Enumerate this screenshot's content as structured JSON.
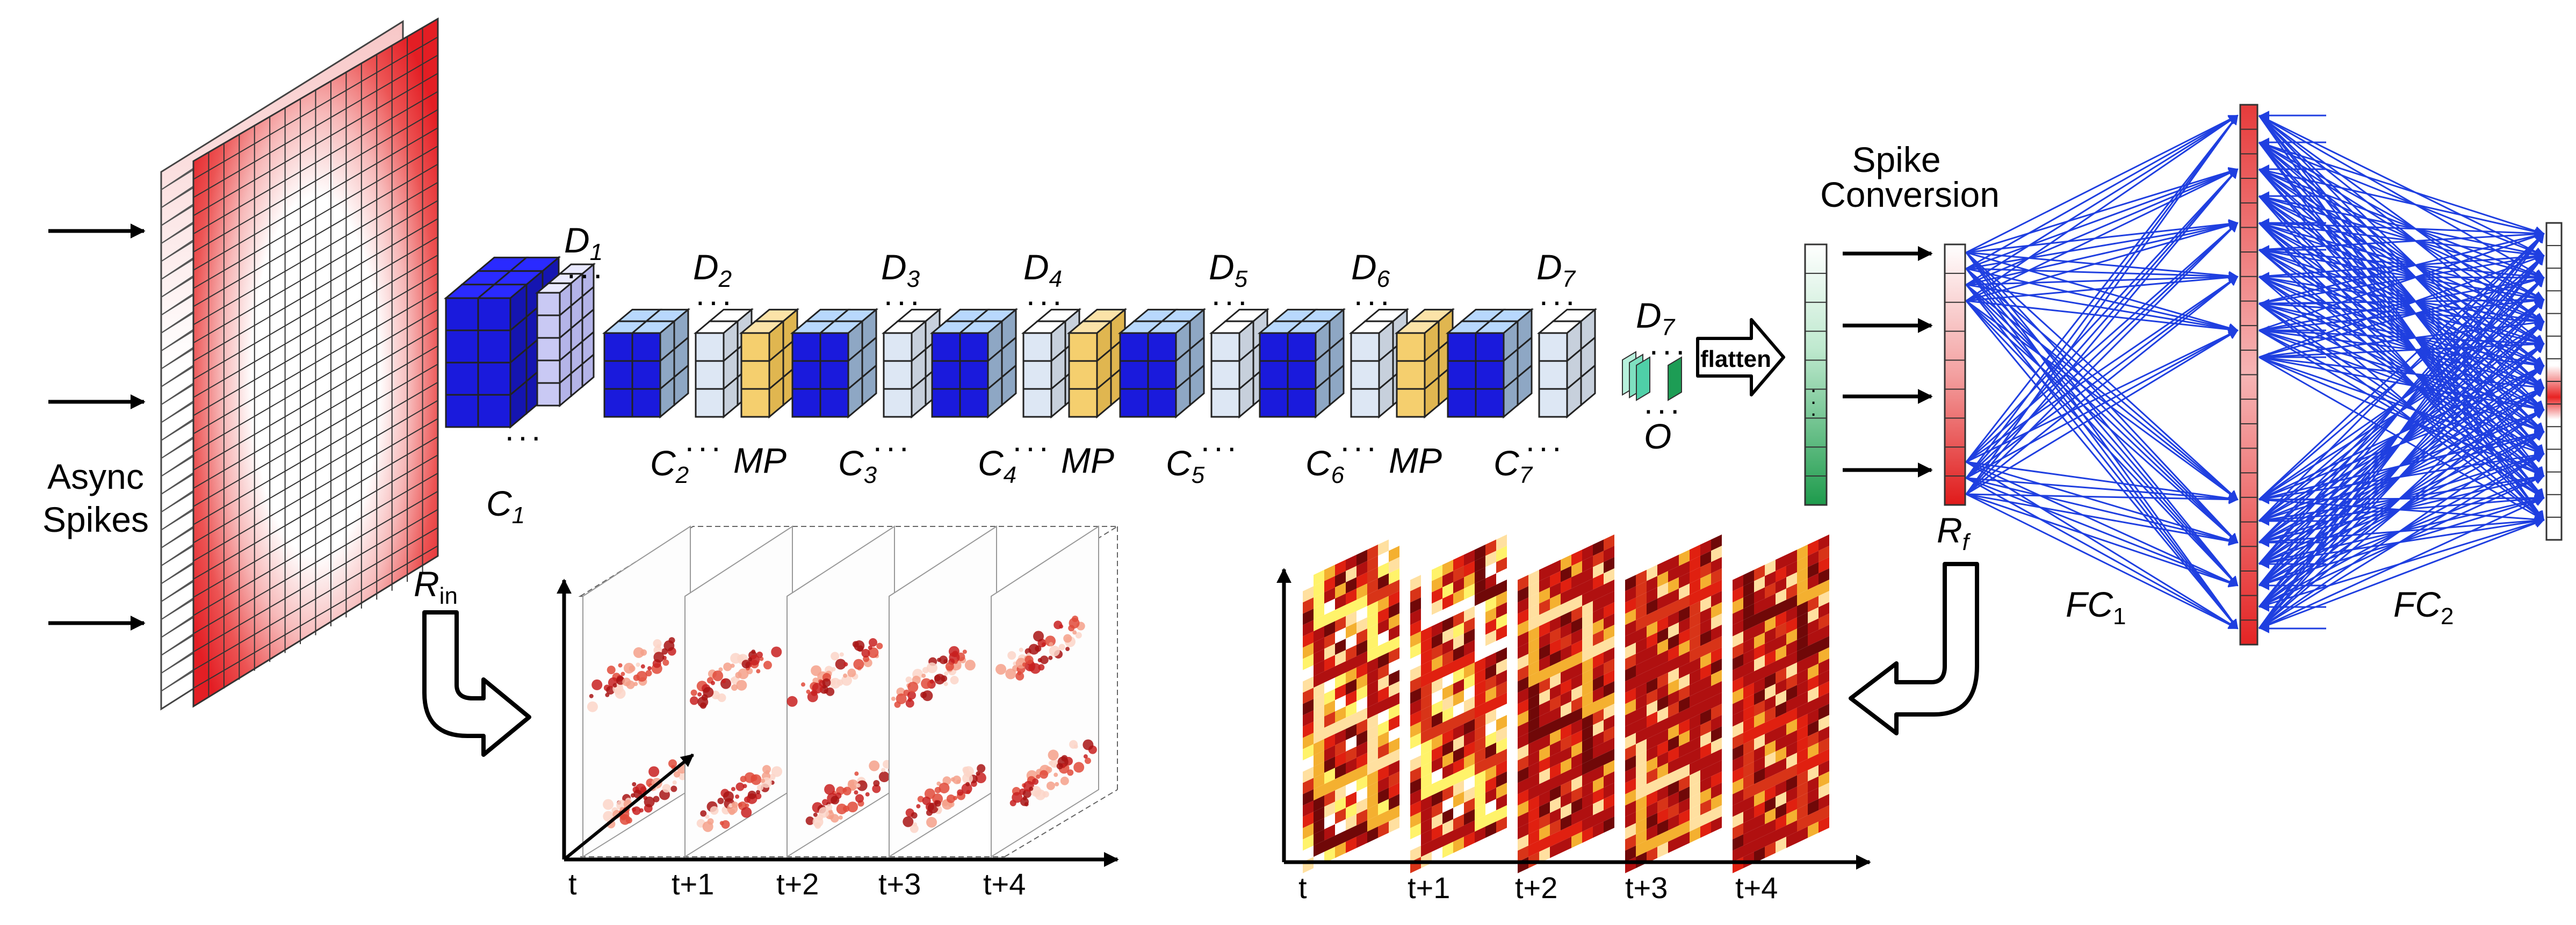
{
  "input": {
    "label_line1": "Async",
    "label_line2": "Spikes",
    "rin_label": "R",
    "rin_sub": "in"
  },
  "conv_layers": [
    {
      "conv": "C",
      "sub": "1",
      "dropout": "D",
      "dsub": "1"
    },
    {
      "conv": "C",
      "sub": "2",
      "dropout": "D",
      "dsub": "2"
    },
    {
      "conv": "C",
      "sub": "3",
      "dropout": "D",
      "dsub": "3"
    },
    {
      "conv": "C",
      "sub": "4",
      "dropout": "D",
      "dsub": "4"
    },
    {
      "conv": "C",
      "sub": "5",
      "dropout": "D",
      "dsub": "5"
    },
    {
      "conv": "C",
      "sub": "6",
      "dropout": "D",
      "dsub": "6"
    },
    {
      "conv": "C",
      "sub": "7",
      "dropout": "D",
      "dsub": "7"
    }
  ],
  "maxpool_label": "MP",
  "output_block": {
    "label": "O",
    "dropout": "D",
    "dsub": "7"
  },
  "flatten_label": "flatten",
  "spike_conversion": {
    "line1": "Spike",
    "line2": "Conversion"
  },
  "rf_label": "R",
  "rf_sub": "f",
  "fc": [
    {
      "label": "FC",
      "sub": "1"
    },
    {
      "label": "FC",
      "sub": "2"
    }
  ],
  "time_axis_input": [
    "t",
    "t+1",
    "t+2",
    "t+3",
    "t+4"
  ],
  "time_axis_output": [
    "t",
    "t+1",
    "t+2",
    "t+3",
    "t+4"
  ],
  "colors": {
    "input_red": "#e8202a",
    "conv_dark_blue": "#1a1adc",
    "conv_light_blue": "#a7c4e6",
    "dropout_pale": "#dde7f4",
    "maxpool_yellow": "#f5cf6e",
    "fc_arrow_blue": "#1f3fe0",
    "spike_green": "#2daa5a"
  },
  "icons": [
    "right-arrow-icon",
    "hollow-curved-arrow-icon",
    "flatten-arrow-icon"
  ]
}
